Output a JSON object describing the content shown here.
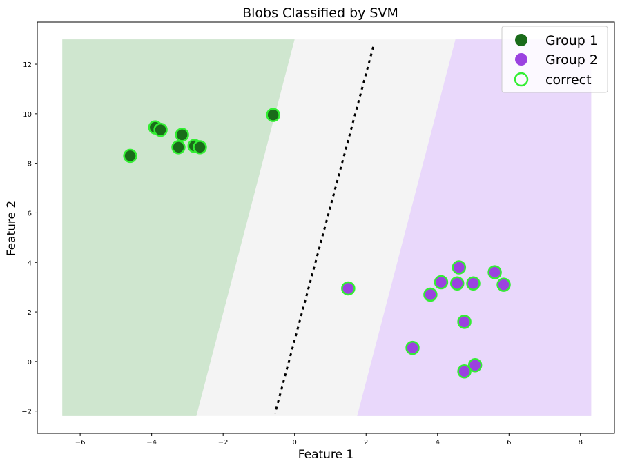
{
  "chart_data": {
    "type": "scatter",
    "title": "Blobs Classified by SVM",
    "xlabel": "Feature 1",
    "ylabel": "Feature 2",
    "xlim": [
      -7.2,
      8.95
    ],
    "ylim": [
      -2.9,
      13.7
    ],
    "x_ticks": [
      -6,
      -4,
      -2,
      0,
      2,
      4,
      6,
      8
    ],
    "y_ticks": [
      -2,
      0,
      2,
      4,
      6,
      8,
      10,
      12
    ],
    "x_tick_labels": [
      "−6",
      "−4",
      "−2",
      "0",
      "2",
      "4",
      "6",
      "8"
    ],
    "y_tick_labels": [
      "−2",
      "0",
      "2",
      "4",
      "6",
      "8",
      "10",
      "12"
    ],
    "grid": false,
    "legend_position": "top-right",
    "colors": {
      "group1": "#1a6b1a",
      "group2": "#9b42e0",
      "correct_edge": "#33ee33",
      "region1": "#cfe6cf",
      "region_margin": "#f4f4f4",
      "region2": "#e9d8fb",
      "boundary": "#000000"
    },
    "decision_region": {
      "x_range": [
        -6.5,
        8.3
      ],
      "y_range": [
        -2.2,
        13.0
      ],
      "group1_edge": [
        [
          0.0,
          13.0
        ],
        [
          -2.75,
          -2.2
        ]
      ],
      "group2_edge": [
        [
          4.5,
          13.0
        ],
        [
          1.75,
          -2.2
        ]
      ],
      "boundary": [
        [
          2.2,
          12.7
        ],
        [
          -0.55,
          -2.1
        ]
      ]
    },
    "series": [
      {
        "name": "Group 1",
        "marker": "filled",
        "x": [
          -4.6,
          -3.9,
          -3.75,
          -3.25,
          -3.15,
          -2.8,
          -2.65,
          -0.6
        ],
        "y": [
          8.3,
          9.45,
          9.35,
          8.65,
          9.15,
          8.7,
          8.65,
          9.95
        ]
      },
      {
        "name": "Group 2",
        "marker": "filled",
        "x": [
          1.5,
          3.3,
          3.8,
          4.1,
          4.55,
          4.6,
          4.75,
          4.75,
          5.0,
          5.05,
          5.6,
          5.85
        ],
        "y": [
          2.95,
          0.55,
          2.7,
          3.2,
          3.15,
          3.8,
          1.6,
          -0.4,
          3.15,
          -0.15,
          3.6,
          3.1
        ]
      },
      {
        "name": "correct",
        "marker": "ring"
      }
    ]
  }
}
